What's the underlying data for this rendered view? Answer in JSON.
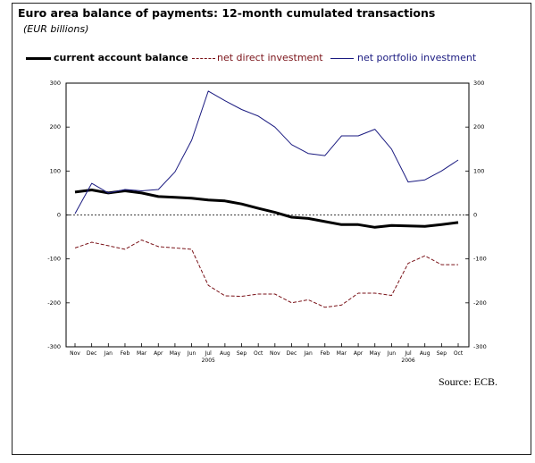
{
  "chart_data": {
    "type": "line",
    "title": "Euro area balance of payments: 12-month cumulated transactions",
    "subtitle": "(EUR billions)",
    "xlabel": "",
    "ylabel": "",
    "ylim": [
      -300,
      300
    ],
    "yticks": [
      300,
      200,
      100,
      0,
      -100,
      -200,
      -300
    ],
    "ytick_labels": [
      "300",
      "200",
      "100",
      "0",
      "-100",
      "-200",
      "-300"
    ],
    "grid": false,
    "legend_position": "top",
    "x": [
      "Nov",
      "Dec",
      "Jan",
      "Feb",
      "Mar",
      "Apr",
      "May",
      "Jun",
      "Jul",
      "Aug",
      "Sep",
      "Oct",
      "Nov",
      "Dec",
      "Jan",
      "Feb",
      "Mar",
      "Apr",
      "May",
      "Jun",
      "Jul",
      "Aug",
      "Sep",
      "Oct"
    ],
    "year_labels": [
      {
        "label": "2005",
        "at": "Jul"
      },
      {
        "label": "2006",
        "at": "Jul"
      }
    ],
    "series": [
      {
        "name": "current account balance",
        "color": "#000000",
        "style": "solid-thick",
        "values": [
          52,
          57,
          50,
          55,
          50,
          42,
          40,
          38,
          34,
          32,
          25,
          15,
          6,
          -5,
          -8,
          -15,
          -22,
          -22,
          -28,
          -24,
          -25,
          -26,
          -22,
          -17
        ]
      },
      {
        "name": "net direct investment",
        "color": "#7a1218",
        "style": "dashed",
        "values": [
          -75,
          -62,
          -70,
          -78,
          -57,
          -72,
          -75,
          -78,
          -160,
          -184,
          -185,
          -180,
          -180,
          -200,
          -193,
          -210,
          -205,
          -178,
          -178,
          -183,
          -110,
          -93,
          -113,
          -113
        ]
      },
      {
        "name": "net portfolio investment",
        "color": "#1a1a80",
        "style": "solid",
        "values": [
          3,
          72,
          50,
          58,
          55,
          58,
          98,
          170,
          282,
          260,
          240,
          225,
          200,
          160,
          140,
          135,
          180,
          180,
          195,
          150,
          75,
          80,
          100,
          125
        ]
      }
    ]
  },
  "source": "Source: ECB."
}
